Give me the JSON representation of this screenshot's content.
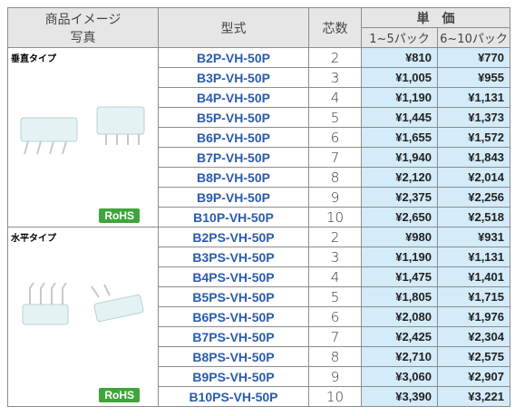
{
  "header": {
    "image": [
      "商品イメージ",
      "写真"
    ],
    "model": "型式",
    "cores": "芯数",
    "price": "単　価",
    "price_cols": [
      "1~5パック",
      "6~10パック"
    ]
  },
  "groups": [
    {
      "label": "垂直タイプ",
      "badge": "RoHS",
      "rows": [
        [
          "B2P-VH-50P",
          2,
          "¥810",
          "¥770"
        ],
        [
          "B3P-VH-50P",
          3,
          "¥1,005",
          "¥955"
        ],
        [
          "B4P-VH-50P",
          4,
          "¥1,190",
          "¥1,131"
        ],
        [
          "B5P-VH-50P",
          5,
          "¥1,445",
          "¥1,373"
        ],
        [
          "B6P-VH-50P",
          6,
          "¥1,655",
          "¥1,572"
        ],
        [
          "B7P-VH-50P",
          7,
          "¥1,940",
          "¥1,843"
        ],
        [
          "B8P-VH-50P",
          8,
          "¥2,120",
          "¥2,014"
        ],
        [
          "B9P-VH-50P",
          9,
          "¥2,375",
          "¥2,256"
        ],
        [
          "B10P-VH-50P",
          10,
          "¥2,650",
          "¥2,518"
        ]
      ]
    },
    {
      "label": "水平タイプ",
      "badge": "RoHS",
      "rows": [
        [
          "B2PS-VH-50P",
          2,
          "¥980",
          "¥931"
        ],
        [
          "B3PS-VH-50P",
          3,
          "¥1,190",
          "¥1,131"
        ],
        [
          "B4PS-VH-50P",
          4,
          "¥1,475",
          "¥1,401"
        ],
        [
          "B5PS-VH-50P",
          5,
          "¥1,805",
          "¥1,715"
        ],
        [
          "B6PS-VH-50P",
          6,
          "¥2,080",
          "¥1,976"
        ],
        [
          "B7PS-VH-50P",
          7,
          "¥2,425",
          "¥2,304"
        ],
        [
          "B8PS-VH-50P",
          8,
          "¥2,710",
          "¥2,575"
        ],
        [
          "B9PS-VH-50P",
          9,
          "¥3,060",
          "¥2,907"
        ],
        [
          "B10PS-VH-50P",
          10,
          "¥3,390",
          "¥3,221"
        ]
      ]
    }
  ]
}
